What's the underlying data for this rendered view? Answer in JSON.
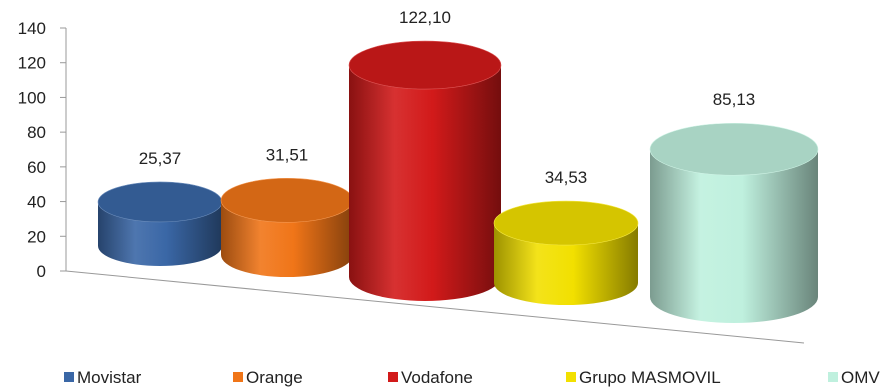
{
  "chart_data": {
    "type": "bar",
    "style": "3d-cylinder",
    "categories": [
      "Movistar",
      "Orange",
      "Vodafone",
      "Grupo MASMOVIL",
      "OMV"
    ],
    "values": [
      25.37,
      31.51,
      122.1,
      34.53,
      85.13
    ],
    "data_labels": [
      "25,37",
      "31,51",
      "122,10",
      "34,53",
      "85,13"
    ],
    "ylim": [
      0,
      140
    ],
    "yticks": [
      0,
      20,
      40,
      60,
      80,
      100,
      120,
      140
    ],
    "colors": [
      "#3a67a6",
      "#f07518",
      "#d21a1a",
      "#f2e000",
      "#bff0de"
    ],
    "legend": {
      "position": "bottom",
      "entries": [
        "Movistar",
        "Orange",
        "Vodafone",
        "Grupo MASMOVIL",
        "OMV"
      ]
    },
    "grid": false
  }
}
